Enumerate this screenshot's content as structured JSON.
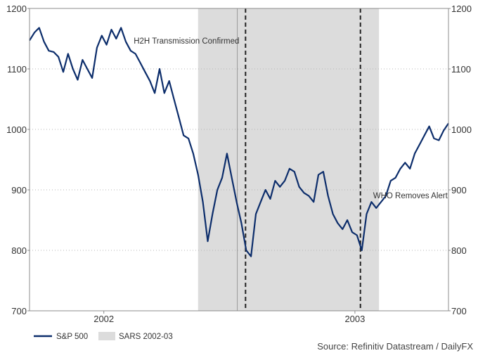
{
  "chart_data": {
    "type": "line",
    "title": "",
    "xlabel": "",
    "ylabel": "",
    "ylim": [
      700,
      1200
    ],
    "y_ticks": [
      700,
      800,
      900,
      1000,
      1100,
      1200
    ],
    "y_axis_sides": [
      "left",
      "right"
    ],
    "x_range": [
      "2001-11-13",
      "2003-07-15"
    ],
    "x_tick_labels": [
      {
        "label": "2002",
        "date": "2002-03-01"
      },
      {
        "label": "2003",
        "date": "2003-03-01"
      }
    ],
    "grid": "horizontal-dotted",
    "line_color": "#0c2d6b",
    "shade_color": "#dcdcdc",
    "shaded_periods": [
      {
        "name": "SARS 2002-03",
        "start": "2002-07-16",
        "end": "2003-04-05"
      }
    ],
    "vertical_lines": [
      {
        "date": "2002-09-23",
        "label": "H2H Transmission Confirmed",
        "style": "dashed"
      },
      {
        "date": "2003-03-09",
        "label": "WHO Removes Alert",
        "style": "dashed"
      }
    ],
    "reference_line_date": "2002-09-11",
    "series": [
      {
        "name": "S&P 500",
        "points": [
          [
            "2001-11-13",
            1147
          ],
          [
            "2001-11-20",
            1160
          ],
          [
            "2001-11-27",
            1168
          ],
          [
            "2001-12-04",
            1145
          ],
          [
            "2001-12-11",
            1130
          ],
          [
            "2001-12-18",
            1128
          ],
          [
            "2001-12-25",
            1120
          ],
          [
            "2002-01-01",
            1095
          ],
          [
            "2002-01-08",
            1125
          ],
          [
            "2002-01-15",
            1100
          ],
          [
            "2002-01-22",
            1082
          ],
          [
            "2002-01-29",
            1115
          ],
          [
            "2002-02-05",
            1100
          ],
          [
            "2002-02-12",
            1085
          ],
          [
            "2002-02-19",
            1135
          ],
          [
            "2002-02-26",
            1155
          ],
          [
            "2002-03-05",
            1140
          ],
          [
            "2002-03-12",
            1165
          ],
          [
            "2002-03-19",
            1150
          ],
          [
            "2002-03-26",
            1168
          ],
          [
            "2002-04-02",
            1145
          ],
          [
            "2002-04-09",
            1130
          ],
          [
            "2002-04-16",
            1125
          ],
          [
            "2002-04-23",
            1110
          ],
          [
            "2002-04-30",
            1095
          ],
          [
            "2002-05-07",
            1080
          ],
          [
            "2002-05-14",
            1060
          ],
          [
            "2002-05-21",
            1100
          ],
          [
            "2002-05-28",
            1060
          ],
          [
            "2002-06-04",
            1080
          ],
          [
            "2002-06-11",
            1050
          ],
          [
            "2002-06-18",
            1020
          ],
          [
            "2002-06-25",
            990
          ],
          [
            "2002-07-02",
            985
          ],
          [
            "2002-07-09",
            960
          ],
          [
            "2002-07-16",
            925
          ],
          [
            "2002-07-23",
            880
          ],
          [
            "2002-07-30",
            815
          ],
          [
            "2002-08-06",
            860
          ],
          [
            "2002-08-13",
            900
          ],
          [
            "2002-08-20",
            920
          ],
          [
            "2002-08-27",
            960
          ],
          [
            "2002-09-03",
            920
          ],
          [
            "2002-09-10",
            880
          ],
          [
            "2002-09-17",
            845
          ],
          [
            "2002-09-24",
            800
          ],
          [
            "2002-10-01",
            790
          ],
          [
            "2002-10-08",
            860
          ],
          [
            "2002-10-15",
            880
          ],
          [
            "2002-10-22",
            900
          ],
          [
            "2002-10-29",
            885
          ],
          [
            "2002-11-05",
            915
          ],
          [
            "2002-11-12",
            905
          ],
          [
            "2002-11-19",
            915
          ],
          [
            "2002-11-26",
            935
          ],
          [
            "2002-12-03",
            930
          ],
          [
            "2002-12-10",
            905
          ],
          [
            "2002-12-17",
            895
          ],
          [
            "2002-12-24",
            890
          ],
          [
            "2002-12-31",
            880
          ],
          [
            "2003-01-07",
            925
          ],
          [
            "2003-01-14",
            930
          ],
          [
            "2003-01-21",
            890
          ],
          [
            "2003-01-28",
            860
          ],
          [
            "2003-02-04",
            845
          ],
          [
            "2003-02-11",
            835
          ],
          [
            "2003-02-18",
            850
          ],
          [
            "2003-02-25",
            830
          ],
          [
            "2003-03-04",
            825
          ],
          [
            "2003-03-11",
            800
          ],
          [
            "2003-03-18",
            860
          ],
          [
            "2003-03-25",
            880
          ],
          [
            "2003-04-01",
            870
          ],
          [
            "2003-04-08",
            880
          ],
          [
            "2003-04-15",
            890
          ],
          [
            "2003-04-22",
            915
          ],
          [
            "2003-04-29",
            920
          ],
          [
            "2003-05-06",
            935
          ],
          [
            "2003-05-13",
            945
          ],
          [
            "2003-05-20",
            935
          ],
          [
            "2003-05-27",
            960
          ],
          [
            "2003-06-03",
            975
          ],
          [
            "2003-06-10",
            990
          ],
          [
            "2003-06-17",
            1005
          ],
          [
            "2003-06-24",
            985
          ],
          [
            "2003-07-01",
            982
          ],
          [
            "2003-07-08",
            998
          ],
          [
            "2003-07-15",
            1010
          ]
        ]
      }
    ],
    "legend": [
      {
        "label": "S&P 500",
        "type": "line"
      },
      {
        "label": "SARS 2002-03",
        "type": "box"
      }
    ],
    "source": "Source: Refinitiv Datastream / DailyFX"
  }
}
